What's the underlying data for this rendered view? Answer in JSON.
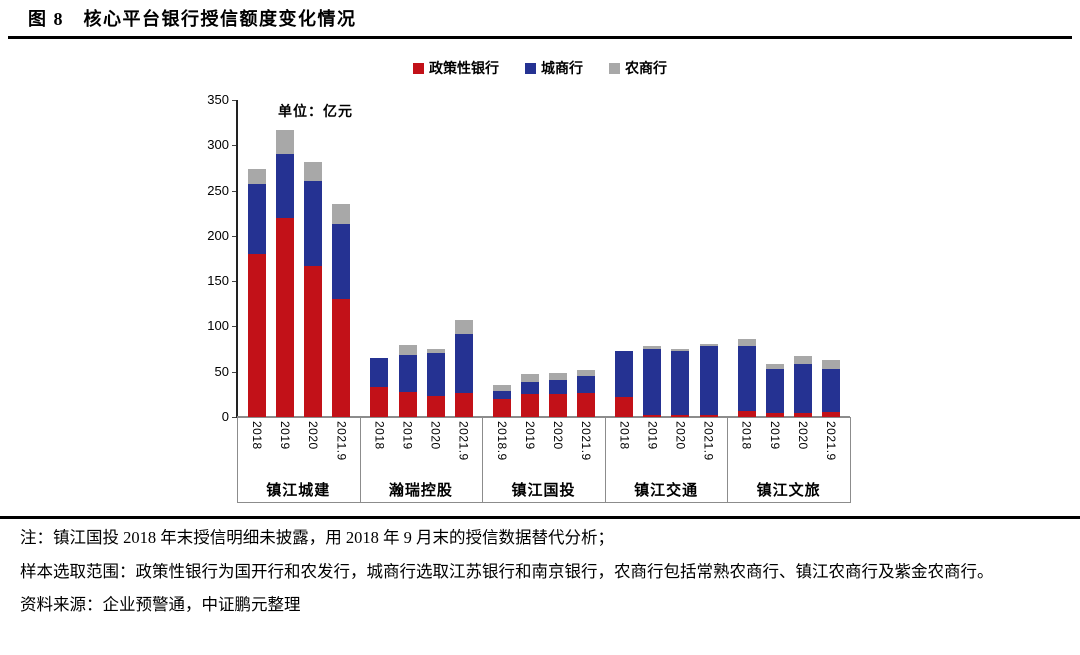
{
  "page": {
    "title": "图 8　核心平台银行授信额度变化情况"
  },
  "chart_data": {
    "type": "bar",
    "stacked": true,
    "unit_label": "单位：亿元",
    "ylabel": "",
    "xlabel": "",
    "ylim": [
      0,
      350
    ],
    "yticks": [
      0,
      50,
      100,
      150,
      200,
      250,
      300,
      350
    ],
    "grid": false,
    "legend_position": "top-center",
    "legend": [
      {
        "key": "policy-bank",
        "name": "政策性银行",
        "color": "#c21118"
      },
      {
        "key": "city-bank",
        "name": "城商行",
        "color": "#253292"
      },
      {
        "key": "rural-bank",
        "name": "农商行",
        "color": "#a8a8a8"
      }
    ],
    "groups": [
      {
        "name": "镇江城建",
        "bars": [
          {
            "label": "2018",
            "values": [
              180,
              77,
              17
            ]
          },
          {
            "label": "2019",
            "values": [
              220,
              70,
              27
            ]
          },
          {
            "label": "2020",
            "values": [
              167,
              94,
              21
            ]
          },
          {
            "label": "2021.9",
            "values": [
              130,
              83,
              22
            ]
          }
        ]
      },
      {
        "name": "瀚瑞控股",
        "bars": [
          {
            "label": "2018",
            "values": [
              33,
              32,
              0
            ]
          },
          {
            "label": "2019",
            "values": [
              28,
              40,
              12
            ]
          },
          {
            "label": "2020",
            "values": [
              23,
              48,
              4
            ]
          },
          {
            "label": "2021.9",
            "values": [
              26,
              66,
              15
            ]
          }
        ]
      },
      {
        "name": "镇江国投",
        "bars": [
          {
            "label": "2018.9",
            "values": [
              20,
              9,
              6
            ]
          },
          {
            "label": "2019",
            "values": [
              25,
              14,
              9
            ]
          },
          {
            "label": "2020",
            "values": [
              25,
              16,
              8
            ]
          },
          {
            "label": "2021.9",
            "values": [
              27,
              18,
              7
            ]
          }
        ]
      },
      {
        "name": "镇江交通",
        "bars": [
          {
            "label": "2018",
            "values": [
              22,
              51,
              0
            ]
          },
          {
            "label": "2019",
            "values": [
              2,
              73,
              3
            ]
          },
          {
            "label": "2020",
            "values": [
              2,
              71,
              2
            ]
          },
          {
            "label": "2021.9",
            "values": [
              2,
              76,
              3
            ]
          }
        ]
      },
      {
        "name": "镇江文旅",
        "bars": [
          {
            "label": "2018",
            "values": [
              7,
              71,
              8
            ]
          },
          {
            "label": "2019",
            "values": [
              4,
              49,
              6
            ]
          },
          {
            "label": "2020",
            "values": [
              4,
              55,
              8
            ]
          },
          {
            "label": "2021.9",
            "values": [
              5,
              48,
              10
            ]
          }
        ]
      }
    ]
  },
  "notes": {
    "note1": "注：镇江国投 2018 年末授信明细未披露，用 2018 年 9 月末的授信数据替代分析；",
    "note2": "样本选取范围：政策性银行为国开行和农发行，城商行选取江苏银行和南京银行，农商行包括常熟农商行、镇江农商行及紫金农商行。",
    "source": "资料来源：企业预警通，中证鹏元整理"
  }
}
